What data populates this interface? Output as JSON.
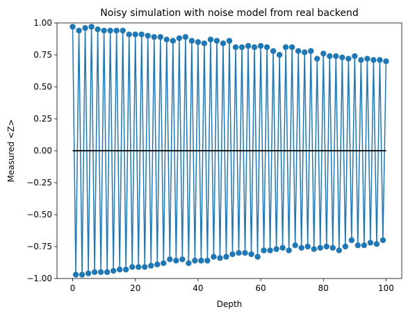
{
  "chart_data": {
    "type": "line",
    "title": "Noisy simulation with noise model from real backend",
    "xlabel": "Depth",
    "ylabel": "Measured <Z>",
    "xlim": [
      -5,
      105
    ],
    "ylim": [
      -1.0,
      1.0
    ],
    "grid": false,
    "xticks": [
      0,
      20,
      40,
      60,
      80,
      100
    ],
    "xtick_labels": [
      "0",
      "20",
      "40",
      "60",
      "80",
      "100"
    ],
    "yticks": [
      1.0,
      0.75,
      0.5,
      0.25,
      0.0,
      -0.25,
      -0.5,
      -0.75,
      -1.0
    ],
    "ytick_labels": [
      "1.00",
      "0.75",
      "0.50",
      "0.25",
      "0.00",
      "−0.25",
      "−0.50",
      "−0.75",
      "−1.00"
    ],
    "colors": {
      "series": "#1f77b4",
      "reference": "#000000"
    },
    "series": [
      {
        "marker": "circle",
        "x": [
          0,
          1,
          2,
          3,
          4,
          5,
          6,
          7,
          8,
          9,
          10,
          11,
          12,
          13,
          14,
          15,
          16,
          17,
          18,
          19,
          20,
          21,
          22,
          23,
          24,
          25,
          26,
          27,
          28,
          29,
          30,
          31,
          32,
          33,
          34,
          35,
          36,
          37,
          38,
          39,
          40,
          41,
          42,
          43,
          44,
          45,
          46,
          47,
          48,
          49,
          50,
          51,
          52,
          53,
          54,
          55,
          56,
          57,
          58,
          59,
          60,
          61,
          62,
          63,
          64,
          65,
          66,
          67,
          68,
          69,
          70,
          71,
          72,
          73,
          74,
          75,
          76,
          77,
          78,
          79,
          80,
          81,
          82,
          83,
          84,
          85,
          86,
          87,
          88,
          89,
          90,
          91,
          92,
          93,
          94,
          95,
          96,
          97,
          98,
          99,
          100
        ],
        "y": [
          0.97,
          -0.97,
          0.94,
          -0.97,
          0.96,
          -0.96,
          0.97,
          -0.95,
          0.95,
          -0.95,
          0.94,
          -0.95,
          0.94,
          -0.94,
          0.94,
          -0.93,
          0.94,
          -0.93,
          0.91,
          -0.91,
          0.91,
          -0.91,
          0.91,
          -0.91,
          0.9,
          -0.9,
          0.89,
          -0.89,
          0.89,
          -0.88,
          0.87,
          -0.85,
          0.86,
          -0.86,
          0.88,
          -0.85,
          0.89,
          -0.88,
          0.86,
          -0.86,
          0.85,
          -0.86,
          0.84,
          -0.86,
          0.87,
          -0.83,
          0.86,
          -0.84,
          0.84,
          -0.83,
          0.86,
          -0.81,
          0.81,
          -0.8,
          0.81,
          -0.8,
          0.82,
          -0.81,
          0.81,
          -0.83,
          0.82,
          -0.78,
          0.81,
          -0.78,
          0.78,
          -0.77,
          0.75,
          -0.76,
          0.81,
          -0.78,
          0.81,
          -0.74,
          0.78,
          -0.76,
          0.77,
          -0.75,
          0.78,
          -0.77,
          0.72,
          -0.76,
          0.76,
          -0.75,
          0.74,
          -0.76,
          0.74,
          -0.78,
          0.73,
          -0.75,
          0.72,
          -0.7,
          0.74,
          -0.74,
          0.71,
          -0.74,
          0.72,
          -0.72,
          0.71,
          -0.73,
          0.71,
          -0.7,
          0.7
        ]
      },
      {
        "marker": "none",
        "x": [
          0,
          100
        ],
        "y": [
          0.0,
          0.0
        ]
      }
    ]
  }
}
